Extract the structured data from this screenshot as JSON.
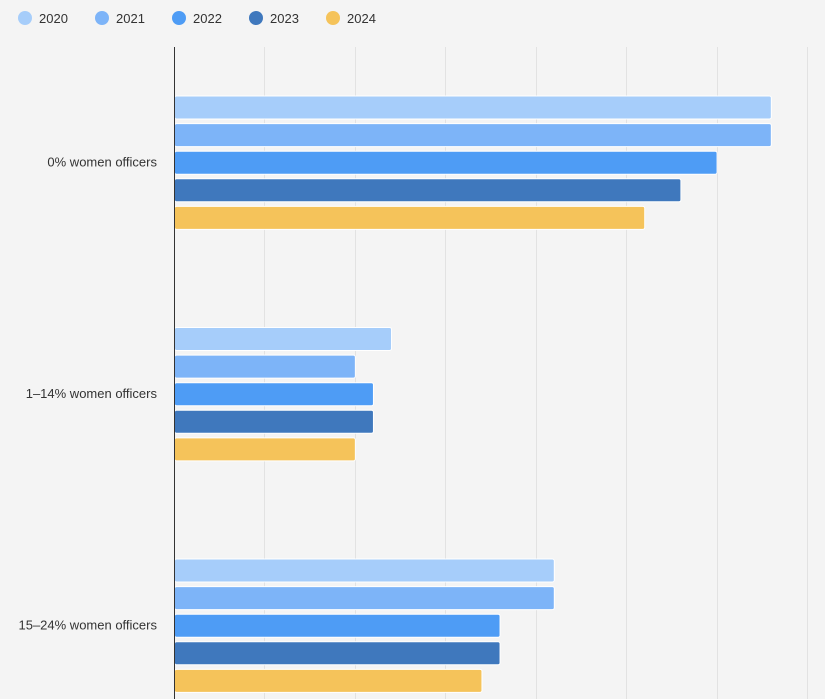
{
  "chart_data": {
    "type": "bar",
    "orientation": "horizontal",
    "categories": [
      "0% women officers",
      "1–14% women officers",
      "15–24% women officers"
    ],
    "series": [
      {
        "name": "2020",
        "color": "#a6cdfa",
        "values": [
          33,
          12,
          21
        ]
      },
      {
        "name": "2021",
        "color": "#7db4f8",
        "values": [
          33,
          10,
          21
        ]
      },
      {
        "name": "2022",
        "color": "#4e9cf5",
        "values": [
          30,
          11,
          18
        ]
      },
      {
        "name": "2023",
        "color": "#3f78bd",
        "values": [
          28,
          11,
          18
        ]
      },
      {
        "name": "2024",
        "color": "#f5c35a",
        "values": [
          26,
          10,
          17
        ]
      }
    ],
    "xlim": [
      0,
      35
    ],
    "grid": true,
    "gridline_step": 5,
    "legend_position": "top-left",
    "title": "",
    "xlabel": "",
    "ylabel": ""
  }
}
